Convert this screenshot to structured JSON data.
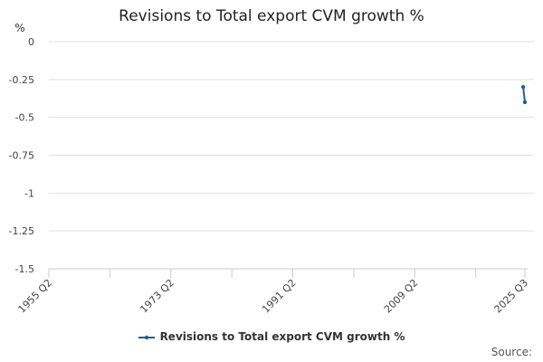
{
  "chart_data": {
    "type": "line",
    "title": "Revisions to Total export CVM growth %",
    "ylabel": "%",
    "xlabel": "",
    "ylim": [
      -1.5,
      0
    ],
    "yticks": [
      0,
      -0.25,
      -0.5,
      -0.75,
      -1,
      -1.25,
      -1.5
    ],
    "ytick_labels": [
      "0",
      "-0.25",
      "-0.5",
      "-0.75",
      "-1",
      "-1.25",
      "-1.5"
    ],
    "x_range": [
      "1955 Q2",
      "2025 Q3"
    ],
    "xtick_labels": [
      "1955 Q2",
      "1973 Q2",
      "1991 Q2",
      "2009 Q2",
      "2025 Q3"
    ],
    "grid": "horizontal",
    "legend_position": "bottom",
    "series": [
      {
        "name": "Revisions to Total export CVM growth %",
        "color": "#206095",
        "points": [
          {
            "x": "2025 Q2",
            "y": -0.3
          },
          {
            "x": "2025 Q3",
            "y": -0.4
          }
        ]
      }
    ]
  },
  "source_label": "Source:"
}
